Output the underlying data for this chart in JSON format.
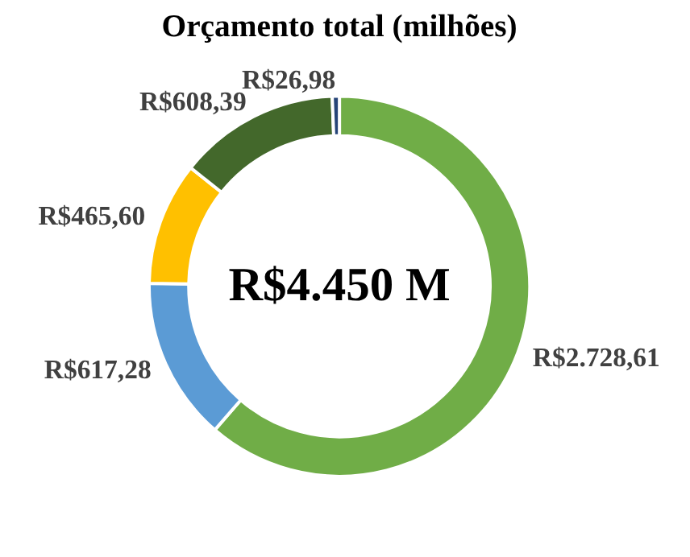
{
  "chart_data": {
    "type": "donut",
    "title": "Orçamento total (milhões)",
    "categories": [
      null,
      null,
      null,
      null,
      null
    ],
    "values": [
      2728.61,
      617.28,
      465.6,
      608.39,
      26.98
    ],
    "colors": [
      "#70ad47",
      "#5b9bd5",
      "#ffc000",
      "#43682b",
      "#264478"
    ],
    "value_labels": [
      "R$2.728,61",
      "R$617,28",
      "R$465,60",
      "R$608,39",
      "R$26,98"
    ],
    "annotations": [
      "R$4.450 M"
    ],
    "legend": false
  }
}
